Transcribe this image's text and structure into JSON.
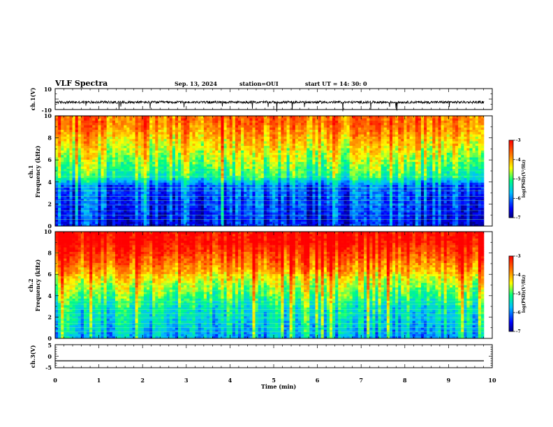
{
  "header": {
    "title": "VLF Spectra",
    "date": "Sep. 13, 2024",
    "station": "station=OUI",
    "start": "start  UT =   14: 30: 0"
  },
  "chart_data": [
    {
      "type": "line",
      "ylabel": "ch.1(V)",
      "ylim": [
        -10,
        10
      ],
      "yticks": [
        "10",
        "-10"
      ],
      "description_free": true,
      "mean": -3.0
    },
    {
      "type": "heatmap",
      "ylabel_line1": "ch.1",
      "ylabel_line2": "Frequency  (kHz)",
      "ylim": [
        0,
        10
      ],
      "yticks": [
        "0",
        "2",
        "4",
        "6",
        "8",
        "10"
      ],
      "colorbar": {
        "label": "log(PSD)(V²/Hz)",
        "min": -7,
        "max": -3,
        "ticks": [
          "-3",
          "-4",
          "-5",
          "-6",
          "-7"
        ]
      }
    },
    {
      "type": "heatmap",
      "ylabel_line1": "ch.2",
      "ylabel_line2": "Frequency  (kHz)",
      "ylim": [
        0,
        10
      ],
      "yticks": [
        "0",
        "2",
        "4",
        "6",
        "8",
        "10"
      ],
      "colorbar": {
        "label": "log(PSD)(V²/Hz)",
        "min": -7,
        "max": -3,
        "ticks": [
          "-3",
          "-4",
          "-5",
          "-6",
          "-7"
        ]
      }
    },
    {
      "type": "line",
      "ylabel": "ch.3(V)",
      "ylim": [
        -5,
        5
      ],
      "yticks": [
        "5",
        "0",
        "-5"
      ],
      "value": -2.0
    }
  ],
  "xaxis": {
    "label": "Time  (min)",
    "xlim": [
      0,
      10
    ],
    "ticks": [
      "0",
      "1",
      "2",
      "3",
      "4",
      "5",
      "6",
      "7",
      "8",
      "9",
      "10"
    ]
  },
  "colors": {
    "scale": [
      "#00007f",
      "#0000ff",
      "#00bfff",
      "#00ff80",
      "#ffff00",
      "#ff8000",
      "#ff0000"
    ]
  }
}
